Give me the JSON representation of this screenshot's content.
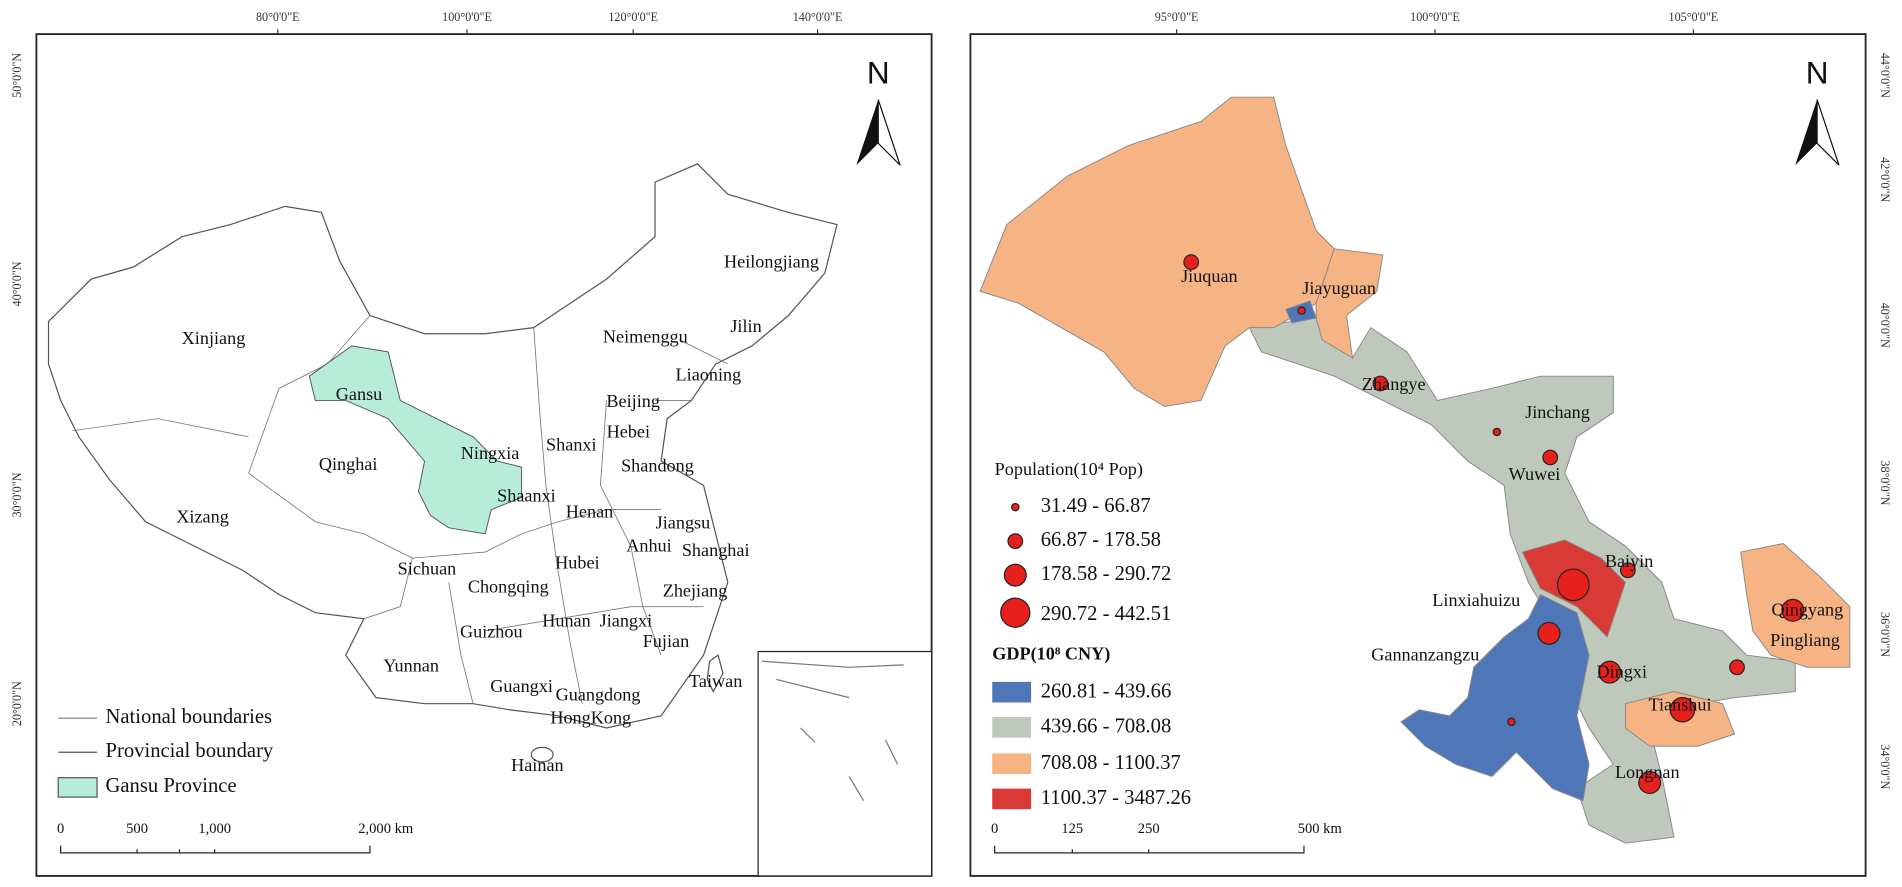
{
  "left_map": {
    "north": "N",
    "graticule_top": [
      "80°0'0\"E",
      "100°0'0\"E",
      "120°0'0\"E",
      "140°0'0\"E"
    ],
    "graticule_left": [
      "50°0'0\"N",
      "40°0'0\"N",
      "30°0'0\"N",
      "20°0'0\"N"
    ],
    "regions": [
      "Xinjiang",
      "Gansu",
      "Qinghai",
      "Ningxia",
      "Shaanxi",
      "Xizang",
      "Sichuan",
      "Chongqing",
      "Guizhou",
      "Yunnan",
      "Guangxi",
      "Hainan",
      "Hunan",
      "Hubei",
      "Henan",
      "Shanxi",
      "Hebei",
      "Beijing",
      "Neimenggu",
      "Heilongjiang",
      "Jilin",
      "Liaoning",
      "Shandong",
      "Jiangsu",
      "Anhui",
      "Shanghai",
      "Zhejiang",
      "Jiangxi",
      "Fujian",
      "Guangdong",
      "HongKong",
      "Taiwan"
    ],
    "legend": [
      "National boundaries",
      "Provincial boundary",
      "Gansu Province"
    ],
    "scale_bar": [
      "0",
      "500",
      "1,000",
      "2,000 km"
    ]
  },
  "right_map": {
    "north": "N",
    "graticule_top": [
      "95°0'0\"E",
      "100°0'0\"E",
      "105°0'0\"E"
    ],
    "graticule_right": [
      "44°0'0\"N",
      "42°0'0\"N",
      "40°0'0\"N",
      "38°0'0\"N",
      "36°0'0\"N",
      "34°0'0\"N"
    ],
    "cities": [
      "Jiuquan",
      "Jiayuguan",
      "Zhangye",
      "Jinchang",
      "Wuwei",
      "Baiyin",
      "Linxiahuizu",
      "Gannanzangzu",
      "Dingxi",
      "Tianshui",
      "Longnan",
      "Qingyang",
      "Pingliang"
    ],
    "population_legend": {
      "title": "Population(10⁴ Pop)",
      "classes": [
        "31.49 - 66.87",
        "66.87 - 178.58",
        "178.58 - 290.72",
        "290.72 - 442.51"
      ]
    },
    "gdp_legend": {
      "title": "GDP(10⁸ CNY)",
      "classes": [
        "260.81 - 439.66",
        "439.66 - 708.08",
        "708.08 - 1100.37",
        "1100.37 - 3487.26"
      ]
    },
    "scale_bar": [
      "0",
      "125",
      "250",
      "500 km"
    ]
  }
}
